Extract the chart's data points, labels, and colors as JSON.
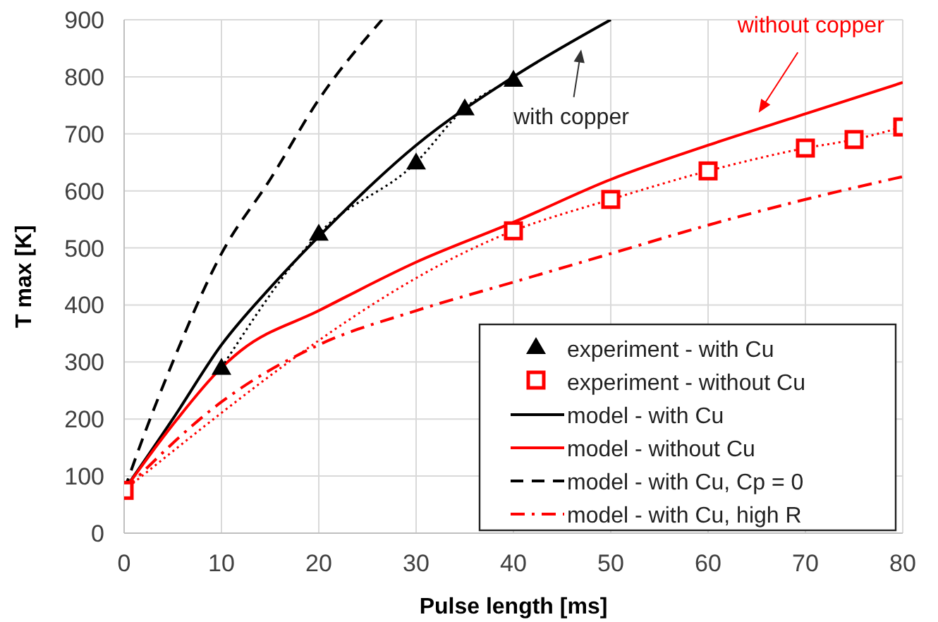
{
  "chart_data": {
    "type": "line",
    "xlabel": "Pulse length [ms]",
    "ylabel": "T max [K]",
    "xlim": [
      0,
      80
    ],
    "xticks": [
      0,
      10,
      20,
      30,
      40,
      50,
      60,
      70,
      80
    ],
    "ylim": [
      0,
      900
    ],
    "yticks": [
      0,
      100,
      200,
      300,
      400,
      500,
      600,
      700,
      800,
      900
    ],
    "grid": true,
    "legend": "bottom right",
    "series": [
      {
        "name": "experiment - with Cu",
        "color": "#000000",
        "marker": "triangle",
        "line_style": "dotted",
        "x": [
          10,
          20,
          30,
          35,
          40
        ],
        "values": [
          290,
          525,
          650,
          745,
          795
        ]
      },
      {
        "name": "experiment - without Cu",
        "color": "#ff0000",
        "marker": "square",
        "line_style": "dotted",
        "x": [
          0,
          40,
          50,
          60,
          70,
          75,
          80
        ],
        "values": [
          75,
          530,
          585,
          635,
          675,
          690,
          712
        ]
      },
      {
        "name": "model - with Cu",
        "color": "#000000",
        "line_style": "solid",
        "x": [
          0,
          5,
          10,
          15,
          20,
          30,
          40,
          50
        ],
        "values": [
          75,
          200,
          330,
          430,
          520,
          680,
          800,
          900
        ]
      },
      {
        "name": "model - without Cu",
        "color": "#ff0000",
        "line_style": "solid",
        "x": [
          0,
          5,
          10,
          12,
          20,
          30,
          40,
          50,
          60,
          70,
          80
        ],
        "values": [
          75,
          190,
          290,
          320,
          390,
          475,
          545,
          620,
          680,
          735,
          790
        ]
      },
      {
        "name": "model - with Cu, Cp = 0",
        "color": "#000000",
        "line_style": "dashed",
        "x": [
          0,
          2,
          5,
          10,
          15,
          20,
          26.5
        ],
        "values": [
          75,
          170,
          300,
          490,
          620,
          760,
          900
        ]
      },
      {
        "name": "model - with Cu, high R",
        "color": "#ff0000",
        "line_style": "dashdot",
        "x": [
          0,
          10,
          20,
          30,
          40,
          50,
          60,
          70,
          80
        ],
        "values": [
          75,
          230,
          330,
          390,
          440,
          490,
          540,
          585,
          625
        ]
      }
    ],
    "annotations": [
      "with copper",
      "without copper"
    ]
  }
}
